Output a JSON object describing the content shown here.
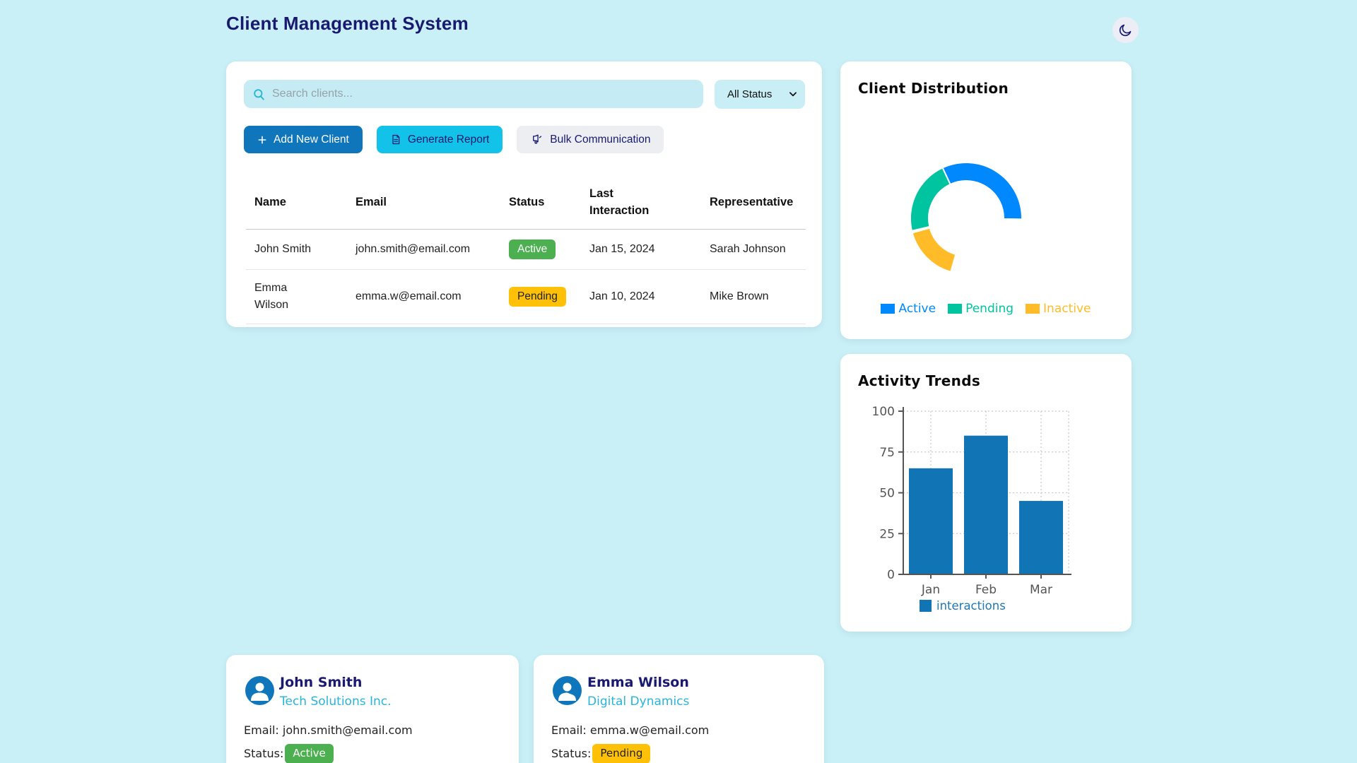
{
  "header": {
    "title": "Client Management System",
    "theme_toggle_icon": "moon-icon"
  },
  "toolbar": {
    "search_placeholder": "Search clients...",
    "status_filter_value": "All Status",
    "add_button": "Add New Client",
    "report_button": "Generate Report",
    "bulk_button": "Bulk Communication"
  },
  "clients_table": {
    "columns": [
      "Name",
      "Email",
      "Status",
      "Last Interaction",
      "Representative"
    ],
    "rows": [
      {
        "name": "John Smith",
        "email": "john.smith@email.com",
        "status": "Active",
        "status_color": "#4caf50",
        "status_text_color": "#ffffff",
        "last_interaction": "Jan 15, 2024",
        "representative": "Sarah Johnson"
      },
      {
        "name": "Emma Wilson",
        "email": "emma.w@email.com",
        "status": "Pending",
        "status_color": "#ffc107",
        "status_text_color": "#1d2025",
        "last_interaction": "Jan 10, 2024",
        "representative": "Mike Brown"
      }
    ]
  },
  "distribution_card": {
    "title": "Client Distribution"
  },
  "trends_card": {
    "title": "Activity Trends"
  },
  "chart_data": [
    {
      "type": "pie",
      "subtype": "doughnut-partial-ring",
      "title": "Client Distribution",
      "legend_position": "bottom",
      "segments": [
        {
          "label": "Active",
          "value_pct": 32,
          "start_deg": -25,
          "end_deg": 91,
          "color": "#0088FE"
        },
        {
          "label": "Pending",
          "value_pct": 22,
          "start_deg": 257,
          "end_deg": 335,
          "color": "#00C49F"
        },
        {
          "label": "Inactive",
          "value_pct": 16,
          "start_deg": 196,
          "end_deg": 255,
          "color": "#FFBB28"
        }
      ],
      "empty_arc": {
        "start_deg": 91,
        "end_deg": 196
      }
    },
    {
      "type": "bar",
      "title": "Activity Trends",
      "categories": [
        "Jan",
        "Feb",
        "Mar"
      ],
      "series": [
        {
          "name": "interactions",
          "values": [
            65,
            85,
            45
          ],
          "color": "#1174b4",
          "legend_text_color": "#1f77b4"
        }
      ],
      "ylim": [
        0,
        100
      ],
      "yticks": [
        0,
        25,
        50,
        75,
        100
      ],
      "grid": "dotted",
      "legend_position": "bottom"
    }
  ],
  "client_cards": [
    {
      "name": "John Smith",
      "company": "Tech Solutions Inc.",
      "email_label": "Email:",
      "email": "john.smith@email.com",
      "status_label": "Status:",
      "status": "Active",
      "status_color": "#4caf50",
      "status_text_color": "#ffffff"
    },
    {
      "name": "Emma Wilson",
      "company": "Digital Dynamics",
      "email_label": "Email:",
      "email": "emma.w@email.com",
      "status_label": "Status:",
      "status": "Pending",
      "status_color": "#ffc107",
      "status_text_color": "#1d2025"
    }
  ],
  "colors": {
    "page_bg": "#c9f0f7",
    "title_navy": "#191970",
    "primary_blue": "#0f76bc",
    "cyan_accent": "#13c2e8",
    "company_link": "#29b4dc",
    "axis_gray": "#555555"
  }
}
